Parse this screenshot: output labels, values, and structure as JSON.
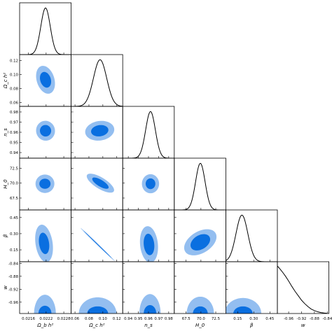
{
  "chart_data": {
    "type": "corner",
    "title": "",
    "colors": {
      "inner": "#0a6fe0",
      "outer": "#93bef0",
      "line": "#000000"
    },
    "parameters": [
      {
        "name": "omega_b",
        "label": "Ω_b h²",
        "range": [
          0.0213,
          0.02305
        ],
        "ticks": [
          0.0216,
          0.0222,
          0.0228
        ],
        "tick_labels": [
          "0.0216",
          "0.0222",
          "0.0228"
        ],
        "mean": 0.02218,
        "sigma": 0.00016
      },
      {
        "name": "omega_c",
        "label": "Ω_c h²",
        "range": [
          0.0545,
          0.1285
        ],
        "ticks": [
          0.06,
          0.08,
          0.1,
          0.12
        ],
        "tick_labels": [
          "0.06",
          "0.08",
          "0.10",
          "0.12"
        ],
        "mean": 0.096,
        "sigma": 0.0095
      },
      {
        "name": "n_s",
        "label": "n_s",
        "range": [
          0.9345,
          0.9855
        ],
        "ticks": [
          0.94,
          0.95,
          0.96,
          0.97,
          0.98
        ],
        "tick_labels": [
          "0.94",
          "0.95",
          "0.96",
          "0.97",
          "0.98"
        ],
        "mean": 0.962,
        "sigma": 0.0048
      },
      {
        "name": "H0",
        "label": "H_0",
        "range": [
          65.5,
          74.2
        ],
        "ticks": [
          67.5,
          70.0,
          72.5
        ],
        "tick_labels": [
          "67.5",
          "70.0",
          "72.5"
        ],
        "mean": 69.9,
        "sigma": 0.8
      },
      {
        "name": "beta",
        "label": "β",
        "range": [
          0.04,
          0.52
        ],
        "ticks": [
          0.15,
          0.3,
          0.45
        ],
        "tick_labels": [
          "0.15",
          "0.30",
          "0.45"
        ],
        "mean": 0.19,
        "sigma": 0.055
      },
      {
        "name": "w",
        "label": "w",
        "range": [
          -0.995,
          -0.835
        ],
        "ticks": [
          -0.96,
          -0.92,
          -0.88,
          -0.84
        ],
        "tick_labels": [
          "-0.96",
          "-0.92",
          "-0.88",
          "-0.84"
        ]
      }
    ],
    "w_curve": {
      "x": [
        -1.0,
        -0.99,
        -0.98,
        -0.97,
        -0.96,
        -0.95,
        -0.94,
        -0.93,
        -0.92,
        -0.91,
        -0.9,
        -0.89,
        -0.88,
        -0.87,
        -0.86,
        -0.85,
        -0.84
      ],
      "y": [
        1.0,
        0.93,
        0.85,
        0.76,
        0.66,
        0.55,
        0.45,
        0.36,
        0.27,
        0.2,
        0.14,
        0.09,
        0.06,
        0.035,
        0.02,
        0.01,
        0.004
      ]
    },
    "contours": [
      {
        "row": 1,
        "col": 0,
        "center": [
          0.02218,
          0.0925
        ],
        "rx68": 0.00018,
        "ry68": 0.0115,
        "rx95": 0.0003,
        "ry95": 0.0205,
        "angle": 0.3
      },
      {
        "row": 2,
        "col": 0,
        "center": [
          0.02218,
          0.9615
        ],
        "rx68": 0.00019,
        "ry68": 0.0057,
        "rx95": 0.00032,
        "ry95": 0.0098,
        "angle": 0.2
      },
      {
        "row": 2,
        "col": 1,
        "center": [
          0.0955,
          0.9615
        ],
        "rx68": 0.0125,
        "ry68": 0.0055,
        "rx95": 0.021,
        "ry95": 0.0096,
        "angle": 0.15
      },
      {
        "row": 3,
        "col": 0,
        "center": [
          0.02216,
          69.9
        ],
        "rx68": 0.00019,
        "ry68": 0.85,
        "rx95": 0.00032,
        "ry95": 1.55,
        "angle": 0.0
      },
      {
        "row": 3,
        "col": 1,
        "center": [
          0.0965,
          70.0
        ],
        "rx68": 0.0135,
        "ry68": 0.55,
        "rx95": 0.0225,
        "ry95": 0.95,
        "angle": -0.55
      },
      {
        "row": 3,
        "col": 2,
        "center": [
          0.962,
          69.9
        ],
        "rx68": 0.0048,
        "ry68": 0.9,
        "rx95": 0.0085,
        "ry95": 1.6,
        "angle": 0.0
      },
      {
        "row": 4,
        "col": 0,
        "center": [
          0.02213,
          0.21
        ],
        "rx68": 0.00017,
        "ry68": 0.1,
        "rx95": 0.00029,
        "ry95": 0.175,
        "angle": 0.15
      },
      {
        "row": 4,
        "col": 1,
        "center": [
          0.0925,
          0.2
        ],
        "rx68": 0.028,
        "ry68": 0.003,
        "rx95": 0.034,
        "ry95": 0.0065,
        "angle": -0.77
      },
      {
        "row": 4,
        "col": 2,
        "center": [
          0.9605,
          0.2
        ],
        "rx68": 0.0052,
        "ry68": 0.1,
        "rx95": 0.0088,
        "ry95": 0.17,
        "angle": 0.1
      },
      {
        "row": 4,
        "col": 3,
        "center": [
          69.9,
          0.22
        ],
        "rx68": 1.8,
        "ry68": 0.065,
        "rx95": 3.0,
        "ry95": 0.1,
        "angle": 0.55
      }
    ],
    "w_contours": [
      {
        "col": 0,
        "center": 0.02216,
        "hw68": 0.00022,
        "h68": 0.024,
        "hw95": 0.00037,
        "h95": 0.058
      },
      {
        "col": 1,
        "center": 0.0925,
        "hw68": 0.015,
        "h68": 0.022,
        "hw95": 0.027,
        "h95": 0.05
      },
      {
        "col": 2,
        "center": 0.9615,
        "hw68": 0.0062,
        "h68": 0.026,
        "hw95": 0.0105,
        "h95": 0.06
      },
      {
        "col": 3,
        "center": 69.9,
        "hw68": 1.25,
        "h68": 0.022,
        "hw95": 2.3,
        "h95": 0.052
      },
      {
        "col": 4,
        "center": 0.2,
        "hw68": 0.09,
        "h68": 0.022,
        "hw95": 0.17,
        "h95": 0.048
      }
    ]
  }
}
